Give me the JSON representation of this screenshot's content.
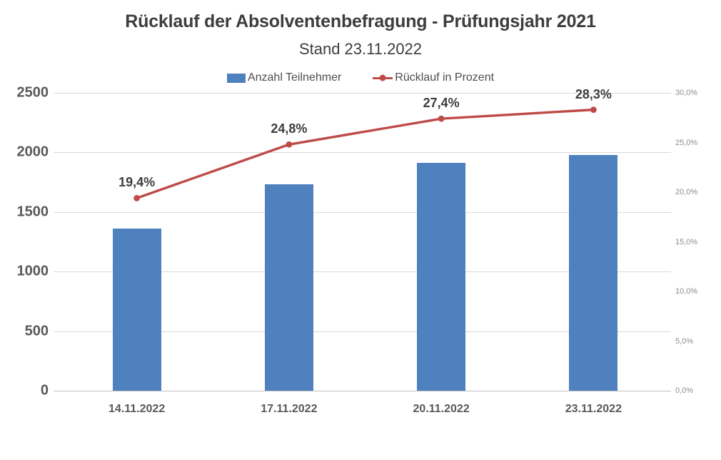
{
  "title": "Rücklauf der Absolventenbefragung - Prüfungsjahr 2021",
  "subtitle": "Stand 23.11.2022",
  "chart_data": {
    "type": "combo",
    "categories": [
      "14.11.2022",
      "17.11.2022",
      "20.11.2022",
      "23.11.2022"
    ],
    "series": [
      {
        "name": "Anzahl Teilnehmer",
        "kind": "bar",
        "axis": "left",
        "values": [
          1360,
          1735,
          1915,
          1980
        ]
      },
      {
        "name": "Rücklauf in Prozent",
        "kind": "line",
        "axis": "right",
        "values": [
          19.4,
          24.8,
          27.4,
          28.3
        ],
        "point_labels": [
          "19,4%",
          "24,8%",
          "27,4%",
          "28,3%"
        ]
      }
    ],
    "left_axis": {
      "min": 0,
      "max": 2500,
      "step": 500,
      "tick_labels": [
        "0",
        "500",
        "1000",
        "1500",
        "2000",
        "2500"
      ]
    },
    "right_axis": {
      "min": 0,
      "max": 30,
      "step": 5,
      "tick_labels": [
        "0,0%",
        "5,0%",
        "10,0%",
        "15,0%",
        "20,0%",
        "25,0%",
        "30,0%"
      ]
    },
    "grid": true,
    "legend_position": "top"
  },
  "colors": {
    "bar": "#4e81bd",
    "line": "#be4b48",
    "grid": "#d9d9d9",
    "axis_text": "#595959",
    "right_axis_text": "#8c8c8c",
    "title_text": "#3d3d3d",
    "background": "#ffffff"
  }
}
